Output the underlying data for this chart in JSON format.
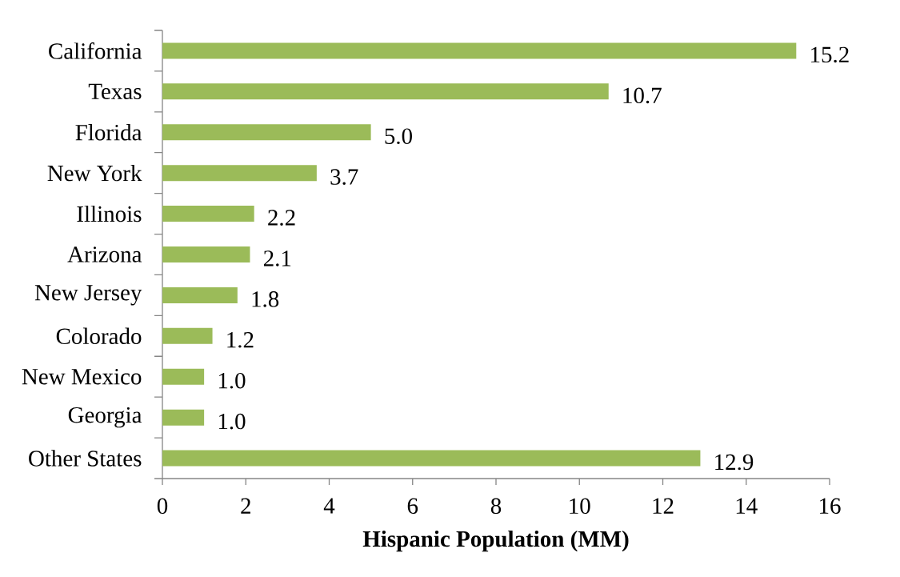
{
  "chart_data": {
    "type": "bar",
    "orientation": "horizontal",
    "xlabel": "Hispanic Population (MM)",
    "categories": [
      "California",
      "Texas",
      "Florida",
      "New York",
      "Illinois",
      "Arizona",
      "New Jersey",
      "Colorado",
      "New Mexico",
      "Georgia",
      "Other States"
    ],
    "values": [
      15.2,
      10.7,
      5.0,
      3.7,
      2.2,
      2.1,
      1.8,
      1.2,
      1.0,
      1.0,
      12.9
    ],
    "value_labels": [
      "15.2",
      "10.7",
      "5.0",
      "3.7",
      "2.2",
      "2.1",
      "1.8",
      "1.2",
      "1.0",
      "1.0",
      "12.9"
    ],
    "color": "#9bbb59",
    "xlim": [
      0,
      16
    ],
    "xticks": [
      0,
      2,
      4,
      6,
      8,
      10,
      12,
      14,
      16
    ]
  }
}
